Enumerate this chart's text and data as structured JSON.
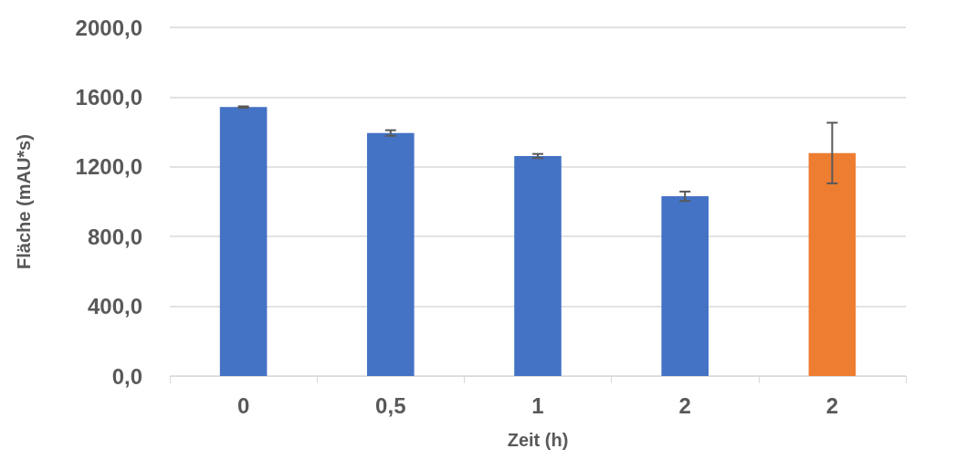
{
  "chart_data": {
    "type": "bar",
    "xlabel": "Zeit (h)",
    "ylabel": "Fläche (mAU*s)",
    "categories": [
      "0",
      "0,5",
      "1",
      "2",
      "2"
    ],
    "values": [
      1543,
      1394,
      1262,
      1031,
      1279
    ],
    "errors": [
      4,
      16,
      12,
      27,
      174
    ],
    "colors": [
      "#4472c4",
      "#4472c4",
      "#4472c4",
      "#4472c4",
      "#ed7d31"
    ],
    "ylim": [
      0,
      2000
    ],
    "yticks": [
      {
        "value": 0,
        "label": "0,0"
      },
      {
        "value": 400,
        "label": "400,0"
      },
      {
        "value": 800,
        "label": "800,0"
      },
      {
        "value": 1200,
        "label": "1200,0"
      },
      {
        "value": 1600,
        "label": "1600,0"
      },
      {
        "value": 2000,
        "label": "2000,0"
      }
    ],
    "grid": "y"
  }
}
